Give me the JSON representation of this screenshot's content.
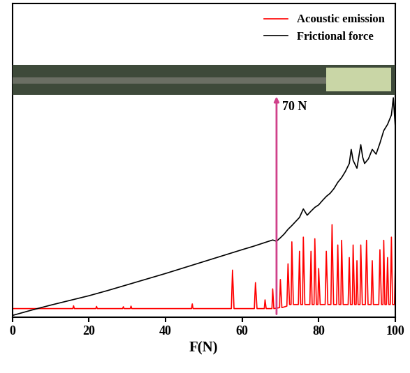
{
  "chart_data": {
    "type": "line",
    "x_label": "F(N)",
    "xlim": [
      0,
      100
    ],
    "xticks": [
      0,
      20,
      40,
      60,
      80,
      100
    ],
    "ylim": [
      0,
      100
    ],
    "tick_labels": "x",
    "legend": "upper right",
    "annotations": [
      {
        "text": "70 N",
        "x": 69
      }
    ],
    "series": [
      {
        "name": "Acoustic emission",
        "color": "#ff0000",
        "x": [
          0,
          15.8,
          16,
          16.2,
          21.8,
          22,
          22.2,
          28.8,
          29,
          29.2,
          30.8,
          31,
          31.2,
          46.8,
          47,
          47.2,
          57.2,
          57.5,
          57.9,
          63.2,
          63.5,
          63.9,
          65.8,
          66,
          66.3,
          67.8,
          68,
          68.3,
          69.8,
          70,
          70.4,
          71.7,
          72,
          72.4,
          72.8,
          73,
          73.4,
          74.7,
          75,
          75.3,
          75.8,
          76,
          76.4,
          77.7,
          78,
          78.3,
          78.8,
          79,
          79.4,
          79.8,
          80,
          80.4,
          81.7,
          82,
          82.4,
          83.2,
          83.5,
          83.9,
          84.7,
          85,
          85.3,
          85.8,
          86,
          86.4,
          87.7,
          88,
          88.3,
          88.8,
          89,
          89.4,
          89.8,
          90,
          90.3,
          90.8,
          91,
          91.4,
          92.2,
          92.5,
          92.9,
          93.7,
          94,
          94.3,
          95.7,
          96,
          96.4,
          96.8,
          97,
          97.3,
          97.7,
          98,
          98.3,
          98.7,
          99,
          99.3,
          99.8,
          100
        ],
        "values": [
          2.7,
          2.7,
          3.6,
          2.7,
          2.7,
          3.4,
          2.7,
          2.7,
          3.3,
          2.7,
          2.7,
          3.5,
          2.7,
          2.7,
          4.2,
          2.7,
          2.7,
          15,
          2.7,
          2.7,
          11,
          2.7,
          2.7,
          5.5,
          2.7,
          2.7,
          9,
          2.7,
          3,
          12,
          3,
          3.5,
          17,
          4,
          4,
          24,
          4,
          4,
          21,
          4,
          4,
          25.5,
          4,
          4,
          21,
          4,
          4,
          25,
          4,
          4,
          15.5,
          4,
          4,
          21,
          4,
          4,
          29.5,
          4,
          4,
          23,
          4,
          4,
          24.5,
          4,
          4,
          19,
          4,
          4,
          23,
          4,
          4,
          18,
          4,
          4,
          23,
          4,
          4,
          24.5,
          4,
          4,
          18,
          4,
          4,
          21.5,
          4,
          4,
          24.5,
          4,
          4,
          19,
          4,
          4,
          25.5,
          4,
          4,
          15.5
        ]
      },
      {
        "name": "Frictional force",
        "color": "#000000",
        "x": [
          0,
          5,
          10,
          15,
          20,
          25,
          30,
          35,
          40,
          45,
          50,
          55,
          60,
          63,
          66,
          68,
          69,
          70,
          71,
          72,
          73,
          74,
          75,
          76,
          77,
          78,
          79,
          80,
          81,
          82,
          83,
          84,
          85,
          86,
          87,
          88,
          88.5,
          89,
          90,
          91,
          91.5,
          92,
          93,
          94,
          95,
          96,
          97,
          98,
          99,
          99.5,
          100
        ],
        "values": [
          0.5,
          2.2,
          3.8,
          5.3,
          6.8,
          8.5,
          10.3,
          12.1,
          13.9,
          15.8,
          17.7,
          19.6,
          21.5,
          22.6,
          23.8,
          24.6,
          24.2,
          25.3,
          26.5,
          28,
          29.2,
          30.5,
          31.8,
          34.5,
          32.5,
          33.8,
          35,
          35.8,
          37.2,
          38.5,
          39.5,
          41,
          43,
          44.5,
          46.5,
          49,
          53.5,
          50,
          47.5,
          55,
          51,
          49,
          50.5,
          53.5,
          52,
          55.5,
          59.5,
          61.5,
          64.5,
          70,
          61
        ]
      }
    ]
  }
}
